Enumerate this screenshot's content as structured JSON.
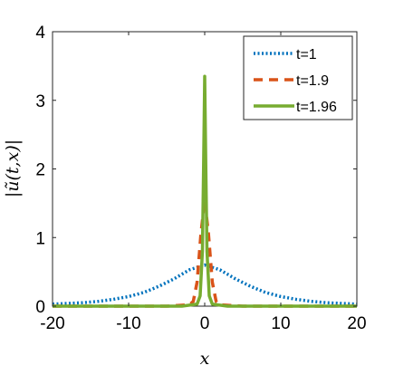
{
  "chart_data": {
    "type": "line",
    "title": "",
    "xlabel": "x",
    "ylabel": "|ũ(t,x)|",
    "xlim": [
      -20,
      20
    ],
    "ylim": [
      0,
      4
    ],
    "x_ticks": [
      "-20",
      "-10",
      "0",
      "10",
      "20"
    ],
    "y_ticks": [
      "0",
      "1",
      "2",
      "3",
      "4"
    ],
    "grid": false,
    "legend_position": "top-right",
    "series": [
      {
        "name": "t=1",
        "color": "#0072BD",
        "style": "dotted",
        "x": [
          -20,
          -18,
          -16,
          -14,
          -12,
          -10,
          -8,
          -6,
          -4,
          -2,
          0,
          2,
          4,
          6,
          8,
          10,
          12,
          14,
          16,
          18,
          20
        ],
        "y": [
          0.03,
          0.04,
          0.05,
          0.07,
          0.1,
          0.14,
          0.2,
          0.29,
          0.4,
          0.53,
          0.6,
          0.53,
          0.4,
          0.29,
          0.2,
          0.14,
          0.1,
          0.07,
          0.05,
          0.04,
          0.03
        ]
      },
      {
        "name": "t=1.9",
        "color": "#D95319",
        "style": "dashed",
        "x": [
          -20,
          -5,
          -2,
          -1.5,
          -1,
          -0.5,
          0,
          0.5,
          1,
          1.5,
          2,
          5,
          20
        ],
        "y": [
          0,
          0,
          0.02,
          0.07,
          0.35,
          1.05,
          1.55,
          1.05,
          0.35,
          0.07,
          0.02,
          0,
          0
        ]
      },
      {
        "name": "t=1.96",
        "color": "#77AC30",
        "style": "solid",
        "x": [
          -20,
          -3,
          -1,
          -0.6,
          -0.3,
          -0.15,
          0,
          0.15,
          0.3,
          0.6,
          1,
          3,
          20
        ],
        "y": [
          0,
          0,
          0.03,
          0.15,
          0.8,
          2.0,
          3.35,
          2.0,
          0.8,
          0.15,
          0.03,
          0,
          0
        ]
      }
    ]
  }
}
